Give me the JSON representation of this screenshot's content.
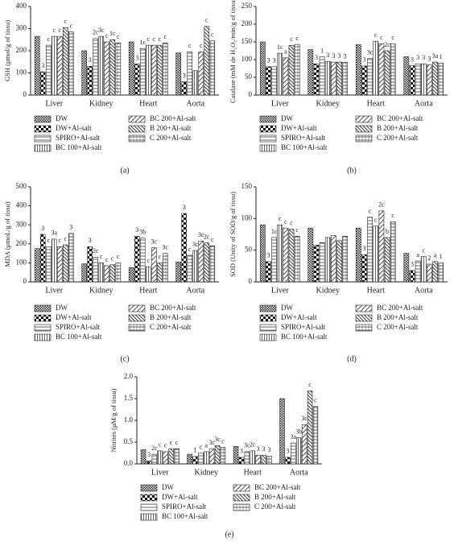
{
  "chart_data": [
    {
      "type": "bar",
      "caption": "(a)",
      "y_label": "GSH (μmol/g of tissu)",
      "categories": [
        "Liver",
        "Kidney",
        "Heart",
        "Aorta"
      ],
      "ylim": [
        0,
        400
      ],
      "yticks": [
        0,
        100,
        200,
        300,
        400
      ],
      "series": [
        {
          "name": "DW",
          "values": [
            265,
            200,
            240,
            190
          ],
          "labels": [
            null,
            null,
            null,
            null
          ]
        },
        {
          "name": "DW+Al-salt",
          "values": [
            105,
            130,
            140,
            60
          ],
          "labels": [
            "3",
            "3",
            "3",
            "3"
          ]
        },
        {
          "name": "SPIRO+Al-salt",
          "values": [
            225,
            255,
            210,
            195
          ],
          "labels": [
            "c",
            "2c",
            "1c",
            "c"
          ]
        },
        {
          "name": "BC 100+Al-salt",
          "values": [
            265,
            265,
            225,
            110
          ],
          "labels": [
            "c",
            "3c",
            "c",
            null
          ]
        },
        {
          "name": "BC 200+Al-salt",
          "values": [
            265,
            240,
            225,
            195
          ],
          "labels": [
            "c",
            "c",
            "c",
            "c"
          ]
        },
        {
          "name": "B 200+Al-salt",
          "values": [
            305,
            250,
            225,
            310
          ],
          "labels": [
            "c",
            "1c",
            "c",
            "c"
          ]
        },
        {
          "name": "C 200+Al-salt",
          "values": [
            285,
            235,
            235,
            245
          ],
          "labels": [
            "c",
            "c",
            "c",
            "c"
          ]
        }
      ]
    },
    {
      "type": "bar",
      "caption": "(b)",
      "y_label": "Catalase (mM de H₂O₂/min/g of tissu)",
      "categories": [
        "Liver",
        "Kidney",
        "Heart",
        "Aorta"
      ],
      "ylim": [
        0,
        250
      ],
      "yticks": [
        0,
        50,
        100,
        150,
        200,
        250
      ],
      "series": [
        {
          "name": "DW",
          "values": [
            150,
            128,
            142,
            108
          ],
          "labels": [
            null,
            null,
            null,
            null
          ]
        },
        {
          "name": "DW+Al-salt",
          "values": [
            80,
            88,
            82,
            83
          ],
          "labels": [
            "3",
            "3",
            "3",
            "3"
          ]
        },
        {
          "name": "SPIRO+Al-salt",
          "values": [
            80,
            108,
            103,
            88
          ],
          "labels": [
            "3",
            "1",
            "3c",
            "3"
          ]
        },
        {
          "name": "BC 100+Al-salt",
          "values": [
            118,
            95,
            152,
            88
          ],
          "labels": [
            "1c",
            "3",
            "c",
            "3"
          ]
        },
        {
          "name": "BC 200+Al-salt",
          "values": [
            105,
            93,
            145,
            85
          ],
          "labels": [
            "a",
            "3",
            "c",
            "3"
          ]
        },
        {
          "name": "B 200+Al-salt",
          "values": [
            140,
            93,
            125,
            93
          ],
          "labels": [
            "c",
            "3",
            "2c",
            "3a"
          ]
        },
        {
          "name": "C 200+Al-salt",
          "values": [
            143,
            92,
            145,
            90
          ],
          "labels": [
            "c",
            "3",
            "c",
            "1"
          ]
        }
      ]
    },
    {
      "type": "bar",
      "caption": "(c)",
      "y_label": "MDA (μmoL/g of tissu)",
      "categories": [
        "Liver",
        "Kidney",
        "Heart",
        "Aorta"
      ],
      "ylim": [
        0,
        500
      ],
      "yticks": [
        0,
        100,
        200,
        300,
        400,
        500
      ],
      "series": [
        {
          "name": "DW",
          "values": [
            175,
            95,
            75,
            105
          ],
          "labels": [
            null,
            null,
            null,
            null
          ]
        },
        {
          "name": "DW+Al-salt",
          "values": [
            250,
            185,
            240,
            360
          ],
          "labels": [
            "3",
            "3",
            "3",
            "3"
          ]
        },
        {
          "name": "SPIRO+Al-salt",
          "values": [
            185,
            130,
            230,
            140
          ],
          "labels": [
            "c",
            "2c",
            "3b",
            "c"
          ]
        },
        {
          "name": "BC 100+Al-salt",
          "values": [
            225,
            100,
            80,
            165
          ],
          "labels": [
            "3a",
            "c",
            "c",
            "3c"
          ]
        },
        {
          "name": "BC 200+Al-salt",
          "values": [
            185,
            85,
            180,
            215
          ],
          "labels": [
            "c",
            "c",
            "3c",
            "3c"
          ]
        },
        {
          "name": "B 200+Al-salt",
          "values": [
            195,
            90,
            100,
            205
          ],
          "labels": [
            "c",
            "c",
            "c",
            "2c"
          ]
        },
        {
          "name": "C 200+Al-salt",
          "values": [
            255,
            100,
            150,
            190
          ],
          "labels": [
            "3",
            "c",
            "3c",
            "c"
          ]
        }
      ]
    },
    {
      "type": "bar",
      "caption": "(d)",
      "y_label": "SOD (Unity of SOD/g of tissu)",
      "categories": [
        "Liver",
        "Kidney",
        "Heart",
        "Aorta"
      ],
      "ylim": [
        0,
        150
      ],
      "yticks": [
        0,
        50,
        100,
        150
      ],
      "series": [
        {
          "name": "DW",
          "values": [
            90,
            85,
            85,
            45
          ],
          "labels": [
            null,
            null,
            null,
            null
          ]
        },
        {
          "name": "DW+Al-salt",
          "values": [
            32,
            58,
            43,
            18
          ],
          "labels": [
            "3",
            null,
            "3",
            "3"
          ]
        },
        {
          "name": "SPIRO+Al-salt",
          "values": [
            70,
            62,
            102,
            33
          ],
          "labels": [
            "1c",
            null,
            "c",
            "a"
          ]
        },
        {
          "name": "BC 100+Al-salt",
          "values": [
            90,
            70,
            88,
            40
          ],
          "labels": [
            "c",
            null,
            "c",
            "c"
          ]
        },
        {
          "name": "BC 200+Al-salt",
          "values": [
            85,
            73,
            112,
            28
          ],
          "labels": [
            "c",
            null,
            "2c",
            "2"
          ]
        },
        {
          "name": "B 200+Al-salt",
          "values": [
            83,
            65,
            70,
            32
          ],
          "labels": [
            "c",
            null,
            "b",
            "a"
          ]
        },
        {
          "name": "C 200+Al-salt",
          "values": [
            72,
            72,
            95,
            30
          ],
          "labels": [
            "c",
            null,
            "c",
            "1"
          ]
        }
      ]
    },
    {
      "type": "bar",
      "caption": "(e)",
      "y_label": "Nitrites (μM/g of tissu)",
      "categories": [
        "Liver",
        "Kidney",
        "Heart",
        "Aorta"
      ],
      "ylim": [
        0,
        2.0
      ],
      "yticks": [
        {
          "value": 0,
          "label": "0.0"
        },
        0.5,
        {
          "value": 1,
          "label": "1.0"
        },
        1.5,
        {
          "value": 2,
          "label": "2.0"
        }
      ],
      "series": [
        {
          "name": "DW",
          "values": [
            0.33,
            0.22,
            0.4,
            1.5
          ],
          "labels": [
            null,
            null,
            null,
            null
          ]
        },
        {
          "name": "DW+Al-salt",
          "values": [
            0.07,
            0.17,
            0.15,
            0.15
          ],
          "labels": [
            "3",
            "1",
            "3",
            "3"
          ]
        },
        {
          "name": "SPIRO+Al-salt",
          "values": [
            0.22,
            0.25,
            0.28,
            0.48
          ],
          "labels": [
            "2c",
            "c",
            "3c",
            "3a"
          ]
        },
        {
          "name": "BC 100+Al-salt",
          "values": [
            0.3,
            0.28,
            0.3,
            0.6
          ],
          "labels": [
            "c",
            "a",
            "2c",
            "3b"
          ]
        },
        {
          "name": "BC 200+Al-salt",
          "values": [
            0.28,
            0.35,
            0.2,
            0.9
          ],
          "labels": [
            "c",
            "3c",
            "3",
            "3c"
          ]
        },
        {
          "name": "B 200+Al-salt",
          "values": [
            0.35,
            0.42,
            0.2,
            1.68
          ],
          "labels": [
            "c",
            "3c",
            "3",
            "c"
          ]
        },
        {
          "name": "C 200+Al-salt",
          "values": [
            0.35,
            0.38,
            0.18,
            1.32
          ],
          "labels": [
            "c",
            "c",
            "3",
            "c"
          ]
        }
      ]
    }
  ]
}
